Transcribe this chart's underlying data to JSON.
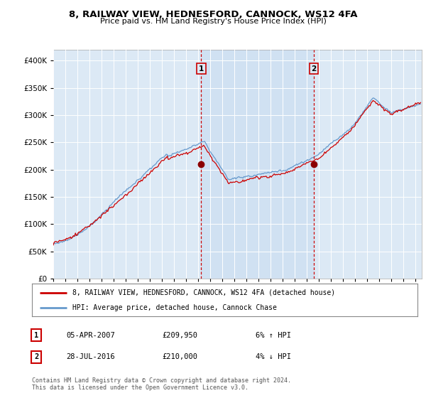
{
  "title": "8, RAILWAY VIEW, HEDNESFORD, CANNOCK, WS12 4FA",
  "subtitle": "Price paid vs. HM Land Registry's House Price Index (HPI)",
  "ylim": [
    0,
    420000
  ],
  "yticks": [
    0,
    50000,
    100000,
    150000,
    200000,
    250000,
    300000,
    350000,
    400000
  ],
  "sale1_date": "05-APR-2007",
  "sale1_price": 209950,
  "sale1_hpi": "6% ↑ HPI",
  "sale2_date": "28-JUL-2016",
  "sale2_price": 210000,
  "sale2_hpi": "4% ↓ HPI",
  "legend_red": "8, RAILWAY VIEW, HEDNESFORD, CANNOCK, WS12 4FA (detached house)",
  "legend_blue": "HPI: Average price, detached house, Cannock Chase",
  "footer": "Contains HM Land Registry data © Crown copyright and database right 2024.\nThis data is licensed under the Open Government Licence v3.0.",
  "plot_bg": "#dce9f5",
  "plot_bg_shade": "#c8dcf0",
  "line_red": "#cc0000",
  "line_blue": "#6699cc",
  "sale1_x": 2007.25,
  "sale2_x": 2016.57,
  "xmin": 1995,
  "xmax": 2025.5
}
